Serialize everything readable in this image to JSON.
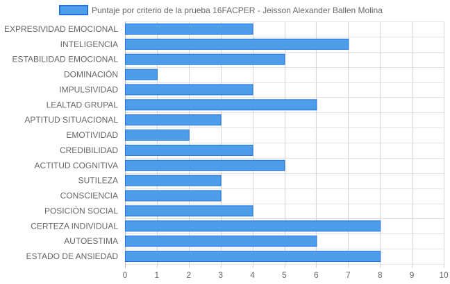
{
  "chart_data": {
    "type": "bar",
    "orientation": "horizontal",
    "categories": [
      "EXPRESIVIDAD EMOCIONAL",
      "INTELIGENCIA",
      "ESTABILIDAD EMOCIONAL",
      "DOMINACIÓN",
      "IMPULSIVIDAD",
      "LEALTAD GRUPAL",
      "APTITUD SITUACIONAL",
      "EMOTIVIDAD",
      "CREDIBILIDAD",
      "ACTITUD COGNITIVA",
      "SUTILEZA",
      "CONSCIENCIA",
      "POSICIÓN SOCIAL",
      "CERTEZA INDIVIDUAL",
      "AUTOESTIMA",
      "ESTADO DE ANSIEDAD"
    ],
    "series": [
      {
        "name": "Puntaje por criterio de la prueba 16FACPER - Jeisson Alexander Ballen Molina",
        "values": [
          4,
          7,
          5,
          1,
          4,
          6,
          3,
          2,
          4,
          5,
          3,
          3,
          4,
          8,
          6,
          8
        ],
        "color": "#4d9de9",
        "border_color": "#1e73e0"
      }
    ],
    "x_ticks": [
      "0",
      "1",
      "2",
      "3",
      "4",
      "5",
      "6",
      "7",
      "8",
      "9",
      "10"
    ],
    "xlim": [
      0,
      10
    ],
    "grid": true,
    "legend_position": "top"
  }
}
